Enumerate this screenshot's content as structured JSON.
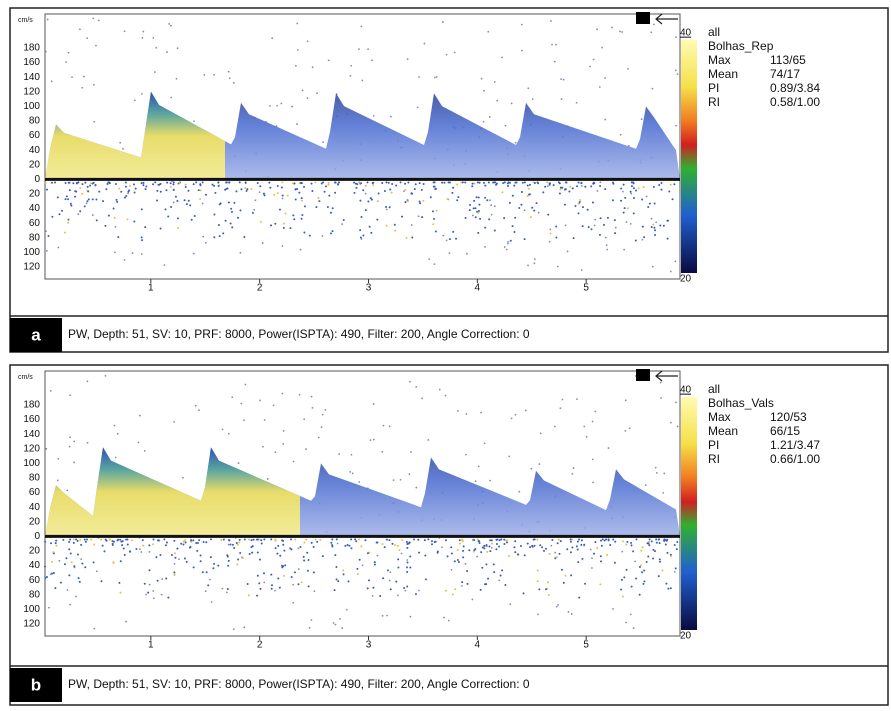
{
  "panels": [
    {
      "label": "a",
      "unit": "cm/s",
      "y_labels": [
        "180",
        "160",
        "140",
        "120",
        "100",
        "80",
        "60",
        "40",
        "20",
        "0",
        "20",
        "40",
        "60",
        "80",
        "100",
        "120"
      ],
      "x_labels": [
        "1",
        "2",
        "3",
        "4",
        "5"
      ],
      "scale_top": "40",
      "scale_bottom": "20",
      "info": {
        "title": "all",
        "name": "Bolhas_Rep",
        "rows": [
          [
            "Max",
            "113/65"
          ],
          [
            "Mean",
            "74/17"
          ],
          [
            "PI",
            "0.89/3.84"
          ],
          [
            "RI",
            "0.58/1.00"
          ]
        ]
      },
      "footer": "PW, Depth: 51, SV: 10, PRF: 8000, Power(ISPTA): 490, Filter: 200, Angle Correction: 0"
    },
    {
      "label": "b",
      "unit": "cm/s",
      "y_labels": [
        "180",
        "160",
        "140",
        "120",
        "100",
        "80",
        "60",
        "40",
        "20",
        "0",
        "20",
        "40",
        "60",
        "80",
        "100",
        "120"
      ],
      "x_labels": [
        "1",
        "2",
        "3",
        "4",
        "5"
      ],
      "scale_top": "40",
      "scale_bottom": "20",
      "info": {
        "title": "all",
        "name": "Bolhas_Vals",
        "rows": [
          [
            "Max",
            "120/53"
          ],
          [
            "Mean",
            "66/15"
          ],
          [
            "PI",
            "1.21/3.47"
          ],
          [
            "RI",
            "0.66/1.00"
          ]
        ]
      },
      "footer": "PW, Depth: 51, SV: 10, PRF: 8000, Power(ISPTA): 490, Filter: 200, Angle Correction: 0"
    }
  ]
}
